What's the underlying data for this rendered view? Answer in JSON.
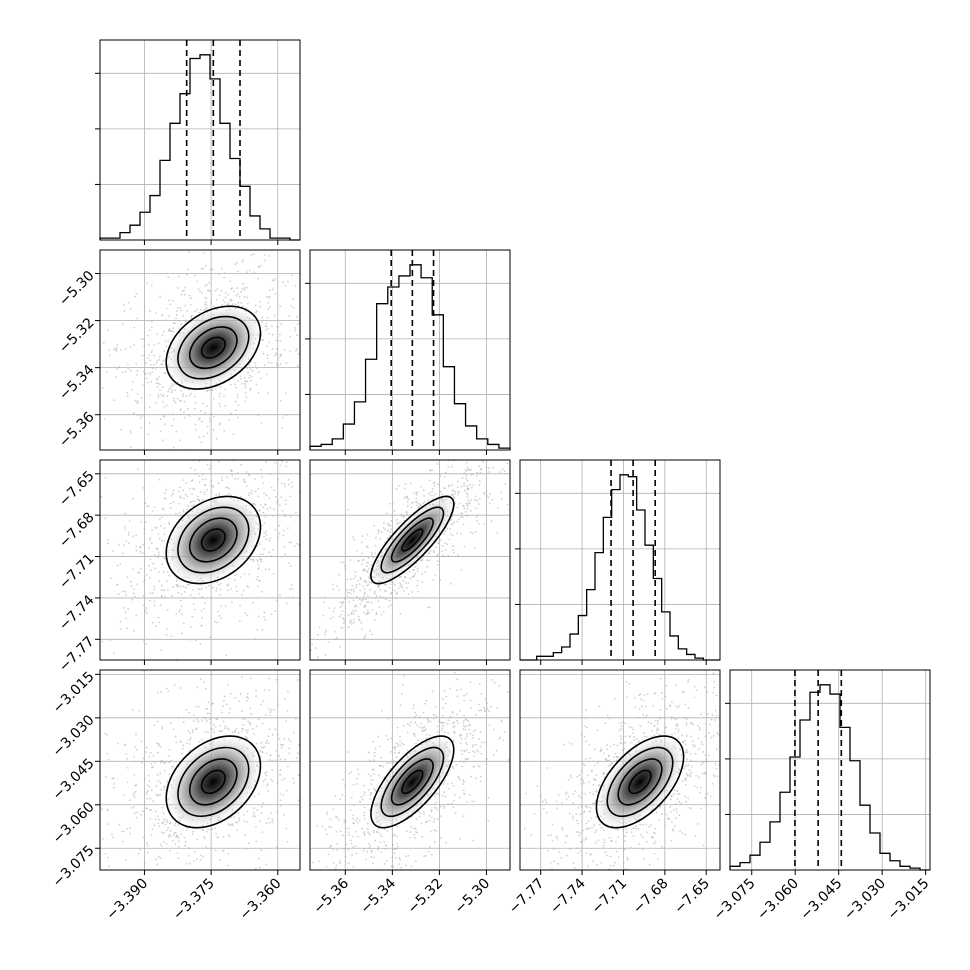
{
  "chart_data": {
    "type": "corner",
    "params": [
      {
        "range": [
          -3.4,
          -3.355
        ],
        "ticks": [
          -3.39,
          -3.375,
          -3.36
        ],
        "tick_labels": [
          "−3.390",
          "−3.375",
          "−3.360"
        ],
        "quantiles": [
          -3.3805,
          -3.3745,
          -3.3685
        ],
        "peak": -3.3745,
        "sigma": 0.0053,
        "hist_counts": [
          0.01,
          0.01,
          0.04,
          0.08,
          0.15,
          0.24,
          0.43,
          0.63,
          0.79,
          0.98,
          1.0,
          0.87,
          0.63,
          0.44,
          0.29,
          0.13,
          0.06,
          0.01,
          0.01,
          0.0
        ]
      },
      {
        "range": [
          -5.375,
          -5.29
        ],
        "ticks": [
          -5.36,
          -5.34,
          -5.32,
          -5.3
        ],
        "tick_labels": [
          "−5.36",
          "−5.34",
          "−5.32",
          "−5.30"
        ],
        "quantiles": [
          -5.3405,
          -5.3315,
          -5.3225
        ],
        "peak": -5.3315,
        "sigma": 0.0088,
        "hist_counts": [
          0.02,
          0.03,
          0.06,
          0.14,
          0.26,
          0.49,
          0.79,
          0.88,
          0.94,
          1.0,
          0.93,
          0.73,
          0.45,
          0.25,
          0.13,
          0.06,
          0.03,
          0.01
        ]
      },
      {
        "range": [
          -7.785,
          -7.64
        ],
        "ticks": [
          -7.77,
          -7.74,
          -7.71,
          -7.68,
          -7.65
        ],
        "tick_labels": [
          "−7.77",
          "−7.74",
          "−7.71",
          "−7.68",
          "−7.65"
        ],
        "quantiles": [
          -7.719,
          -7.703,
          -7.687
        ],
        "peak": -7.698,
        "sigma": 0.0158,
        "hist_counts": [
          0.0,
          0.0,
          0.02,
          0.02,
          0.04,
          0.07,
          0.14,
          0.24,
          0.38,
          0.58,
          0.77,
          0.92,
          1.0,
          0.99,
          0.81,
          0.62,
          0.44,
          0.26,
          0.13,
          0.06,
          0.03,
          0.01,
          0.0,
          0.0
        ]
      },
      {
        "range": [
          -3.0825,
          -3.0135
        ],
        "ticks": [
          -3.075,
          -3.06,
          -3.045,
          -3.03,
          -3.015
        ],
        "tick_labels": [
          "−3.075",
          "−3.060",
          "−3.045",
          "−3.030",
          "−3.015"
        ],
        "quantiles": [
          -3.0601,
          -3.0521,
          -3.0441
        ],
        "peak": -3.0521,
        "sigma": 0.0079,
        "hist_counts": [
          0.02,
          0.04,
          0.08,
          0.15,
          0.26,
          0.42,
          0.61,
          0.81,
          0.96,
          1.0,
          0.95,
          0.77,
          0.59,
          0.35,
          0.2,
          0.09,
          0.05,
          0.02,
          0.01,
          0.0
        ]
      }
    ],
    "correlations": [
      {
        "row": 1,
        "col": 0,
        "rho": 0.35
      },
      {
        "row": 2,
        "col": 0,
        "rho": 0.3
      },
      {
        "row": 2,
        "col": 1,
        "rho": 0.82
      },
      {
        "row": 3,
        "col": 0,
        "rho": 0.35
      },
      {
        "row": 3,
        "col": 1,
        "rho": 0.7
      },
      {
        "row": 3,
        "col": 2,
        "rho": 0.55
      }
    ],
    "contour_levels_sigma": [
      0.5,
      1.0,
      1.5,
      2.0
    ],
    "grid": true,
    "colors": {
      "contour": "#000000",
      "scatter": "#b0b0b0",
      "grid": "#b0b0b0",
      "quantile_line": "#000000"
    }
  }
}
